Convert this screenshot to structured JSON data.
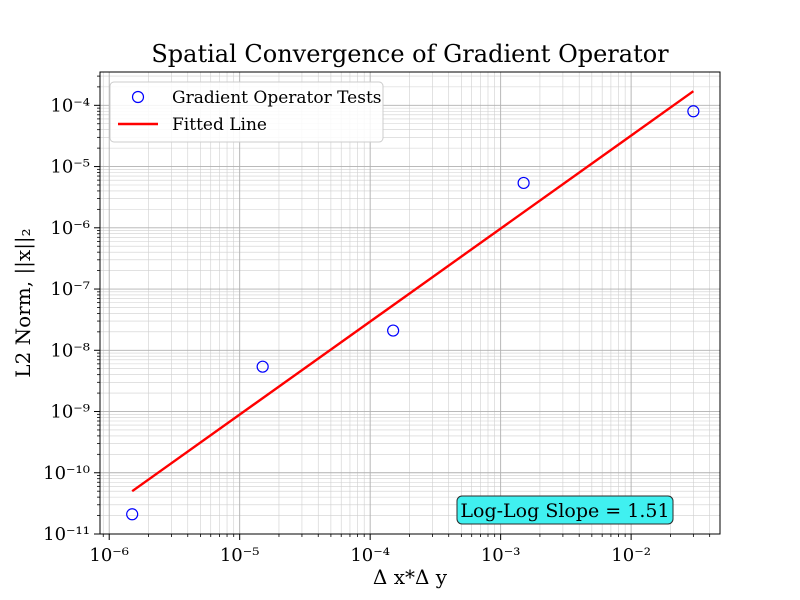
{
  "chart_data": {
    "type": "scatter",
    "title": "Spatial Convergence of Gradient Operator",
    "xlabel": "Δ x*Δ y",
    "ylabel": "L2 Norm, ||x||₂",
    "xscale": "log",
    "yscale": "log",
    "xlim": [
      8.5e-07,
      0.048
    ],
    "ylim": [
      1e-11,
      0.00035
    ],
    "grid": true,
    "legend_position": "top-left",
    "x_ticks": [
      {
        "value": 1e-06,
        "label": "10⁻⁶"
      },
      {
        "value": 1e-05,
        "label": "10⁻⁵"
      },
      {
        "value": 0.0001,
        "label": "10⁻⁴"
      },
      {
        "value": 0.001,
        "label": "10⁻³"
      },
      {
        "value": 0.01,
        "label": "10⁻²"
      }
    ],
    "y_ticks": [
      {
        "value": 1e-11,
        "label": "10⁻¹¹"
      },
      {
        "value": 1e-10,
        "label": "10⁻¹⁰"
      },
      {
        "value": 1e-09,
        "label": "10⁻⁹"
      },
      {
        "value": 1e-08,
        "label": "10⁻⁸"
      },
      {
        "value": 1e-07,
        "label": "10⁻⁷"
      },
      {
        "value": 1e-06,
        "label": "10⁻⁶"
      },
      {
        "value": 1e-05,
        "label": "10⁻⁵"
      },
      {
        "value": 0.0001,
        "label": "10⁻⁴"
      }
    ],
    "series": [
      {
        "name": "Gradient Operator Tests",
        "kind": "scatter",
        "marker": "open-circle",
        "color": "#0000ff",
        "points": [
          {
            "x": 1.5e-06,
            "y": 2.1e-11
          },
          {
            "x": 1.5e-05,
            "y": 5.4e-09
          },
          {
            "x": 0.00015,
            "y": 2.1e-08
          },
          {
            "x": 0.0015,
            "y": 5.4e-06
          },
          {
            "x": 0.03,
            "y": 8e-05
          }
        ]
      },
      {
        "name": "Fitted Line",
        "kind": "line",
        "color": "#ff0000",
        "points": [
          {
            "x": 1.5e-06,
            "y": 5e-11
          },
          {
            "x": 0.03,
            "y": 0.00017
          }
        ]
      }
    ],
    "annotation": {
      "text": "Log-Log Slope = 1.51",
      "x": 0.0045,
      "y": 2.1e-11,
      "background": "#40f0f0"
    }
  }
}
